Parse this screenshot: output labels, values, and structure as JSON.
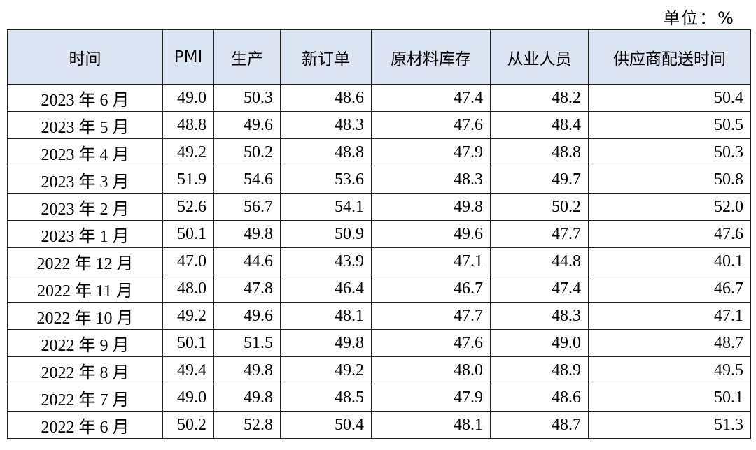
{
  "unit": "单位：%",
  "table": {
    "header": [
      "时间",
      "PMI",
      "生产",
      "新订单",
      "原材料库存",
      "从业人员",
      "供应商配送时间"
    ],
    "rows": [
      [
        "2023 年 6 月",
        "49.0",
        "50.3",
        "48.6",
        "47.4",
        "48.2",
        "50.4"
      ],
      [
        "2023 年 5 月",
        "48.8",
        "49.6",
        "48.3",
        "47.6",
        "48.4",
        "50.5"
      ],
      [
        "2023 年 4 月",
        "49.2",
        "50.2",
        "48.8",
        "47.9",
        "48.8",
        "50.3"
      ],
      [
        "2023 年 3 月",
        "51.9",
        "54.6",
        "53.6",
        "48.3",
        "49.7",
        "50.8"
      ],
      [
        "2023 年 2 月",
        "52.6",
        "56.7",
        "54.1",
        "49.8",
        "50.2",
        "52.0"
      ],
      [
        "2023 年 1 月",
        "50.1",
        "49.8",
        "50.9",
        "49.6",
        "47.7",
        "47.6"
      ],
      [
        "2022 年 12 月",
        "47.0",
        "44.6",
        "43.9",
        "47.1",
        "44.8",
        "40.1"
      ],
      [
        "2022 年 11 月",
        "48.0",
        "47.8",
        "46.4",
        "46.7",
        "47.4",
        "46.7"
      ],
      [
        "2022 年 10 月",
        "49.2",
        "49.6",
        "48.1",
        "47.7",
        "48.3",
        "47.1"
      ],
      [
        "2022 年 9 月",
        "50.1",
        "51.5",
        "49.8",
        "47.6",
        "49.0",
        "48.7"
      ],
      [
        "2022 年 8 月",
        "49.4",
        "49.8",
        "49.2",
        "48.0",
        "48.9",
        "49.5"
      ],
      [
        "2022 年 7 月",
        "49.0",
        "49.8",
        "48.5",
        "47.9",
        "48.6",
        "50.1"
      ],
      [
        "2022 年 6 月",
        "50.2",
        "52.8",
        "50.4",
        "48.1",
        "48.7",
        "51.3"
      ]
    ]
  }
}
